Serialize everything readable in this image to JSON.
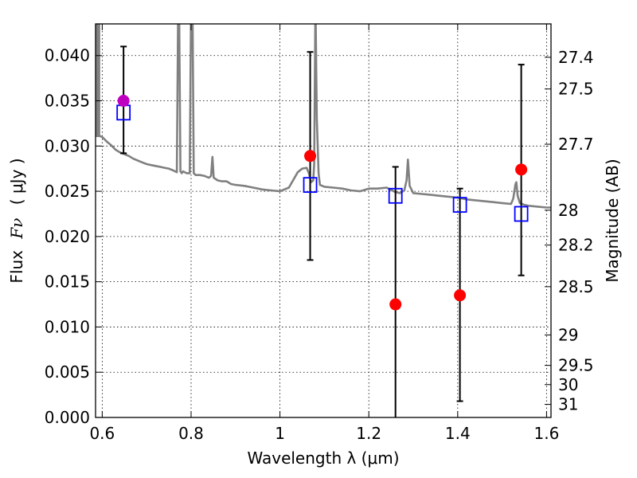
{
  "chart_data": {
    "type": "scatter",
    "xlabel": "Wavelength  λ (μm)",
    "ylabel_text": "Flux",
    "ylabel_symbol": "Fν",
    "ylabel_unit": "( μJy )",
    "y2label": "Magnitude (AB)",
    "xlim": [
      0.585,
      1.61
    ],
    "ylim": [
      0.0,
      0.0435
    ],
    "grid": true,
    "x_ticks": [
      0.6,
      0.8,
      1.0,
      1.2,
      1.4,
      1.6
    ],
    "x_tick_labels": [
      "0.6",
      "0.8",
      "1",
      "1.2",
      "1.4",
      "1.6"
    ],
    "y_ticks": [
      0.0,
      0.005,
      0.01,
      0.015,
      0.02,
      0.025,
      0.03,
      0.035,
      0.04
    ],
    "y_tick_labels": [
      "0.000",
      "0.005",
      "0.010",
      "0.015",
      "0.020",
      "0.025",
      "0.030",
      "0.035",
      "0.040"
    ],
    "y2_ticks": [
      {
        "label": "27.4",
        "mag": 27.4
      },
      {
        "label": "27.5",
        "mag": 27.5
      },
      {
        "label": "27.7",
        "mag": 27.7
      },
      {
        "label": "28",
        "mag": 28.0
      },
      {
        "label": "28.2",
        "mag": 28.2
      },
      {
        "label": "28.5",
        "mag": 28.5
      },
      {
        "label": "29",
        "mag": 29.0
      },
      {
        "label": "29.5",
        "mag": 29.5
      },
      {
        "label": "30",
        "mag": 30.0
      },
      {
        "label": "31",
        "mag": 31.0
      }
    ],
    "observed": {
      "color": "#ff0000",
      "points": [
        {
          "x": 1.068,
          "y": 0.0289,
          "err_lo": 0.0174,
          "err_hi": 0.0404
        },
        {
          "x": 1.26,
          "y": 0.0125,
          "err_lo": 0.0,
          "err_hi": 0.0277
        },
        {
          "x": 1.405,
          "y": 0.0135,
          "err_lo": 0.0018,
          "err_hi": 0.0253
        },
        {
          "x": 1.543,
          "y": 0.0274,
          "err_lo": 0.0157,
          "err_hi": 0.039
        }
      ]
    },
    "observed_highlight": {
      "color": "#bf00bf",
      "points": [
        {
          "x": 0.648,
          "y": 0.035,
          "err_lo": 0.0292,
          "err_hi": 0.041
        }
      ]
    },
    "model_band_flux": {
      "color": "#0000ff",
      "points": [
        {
          "x": 0.648,
          "y": 0.0337
        },
        {
          "x": 1.068,
          "y": 0.0257
        },
        {
          "x": 1.26,
          "y": 0.0245
        },
        {
          "x": 1.405,
          "y": 0.0235
        },
        {
          "x": 1.543,
          "y": 0.0225
        }
      ]
    },
    "model_spectrum": {
      "color": "#808080",
      "x": [
        0.585,
        0.588,
        0.592,
        0.595,
        0.6,
        0.61,
        0.62,
        0.63,
        0.64,
        0.65,
        0.66,
        0.67,
        0.68,
        0.69,
        0.7,
        0.71,
        0.72,
        0.73,
        0.74,
        0.75,
        0.76,
        0.768,
        0.771,
        0.773,
        0.776,
        0.779,
        0.782,
        0.79,
        0.797,
        0.8,
        0.803,
        0.806,
        0.81,
        0.82,
        0.83,
        0.84,
        0.845,
        0.848,
        0.851,
        0.86,
        0.87,
        0.88,
        0.89,
        0.9,
        0.92,
        0.94,
        0.96,
        0.98,
        1.0,
        1.02,
        1.04,
        1.05,
        1.06,
        1.065,
        1.07,
        1.075,
        1.077,
        1.08,
        1.083,
        1.087,
        1.09,
        1.1,
        1.12,
        1.14,
        1.16,
        1.18,
        1.2,
        1.22,
        1.24,
        1.26,
        1.27,
        1.28,
        1.285,
        1.288,
        1.292,
        1.3,
        1.32,
        1.34,
        1.36,
        1.38,
        1.4,
        1.42,
        1.44,
        1.46,
        1.48,
        1.5,
        1.52,
        1.525,
        1.53,
        1.532,
        1.535,
        1.54,
        1.55,
        1.56,
        1.58,
        1.6,
        1.61
      ],
      "y": [
        0.0315,
        0.0312,
        0.0311,
        0.0311,
        0.031,
        0.0305,
        0.0301,
        0.0296,
        0.0293,
        0.0291,
        0.0289,
        0.0286,
        0.0284,
        0.0282,
        0.028,
        0.0279,
        0.0278,
        0.0277,
        0.0276,
        0.0275,
        0.0273,
        0.0271,
        0.046,
        0.046,
        0.0272,
        0.027,
        0.0272,
        0.027,
        0.027,
        0.046,
        0.046,
        0.027,
        0.0268,
        0.0268,
        0.0267,
        0.0265,
        0.0267,
        0.0288,
        0.0265,
        0.0262,
        0.0261,
        0.0261,
        0.0258,
        0.0257,
        0.0256,
        0.0254,
        0.0252,
        0.0251,
        0.025,
        0.0254,
        0.0271,
        0.0275,
        0.0276,
        0.027,
        0.026,
        0.0262,
        0.028,
        0.046,
        0.033,
        0.027,
        0.0257,
        0.0255,
        0.0254,
        0.0253,
        0.0251,
        0.025,
        0.0253,
        0.0253,
        0.0254,
        0.0249,
        0.0248,
        0.0251,
        0.0262,
        0.0285,
        0.0256,
        0.0248,
        0.0247,
        0.0246,
        0.0245,
        0.0244,
        0.0243,
        0.0241,
        0.024,
        0.0239,
        0.0238,
        0.0237,
        0.0236,
        0.0242,
        0.0258,
        0.026,
        0.0245,
        0.0237,
        0.0235,
        0.0234,
        0.0233,
        0.0232,
        0.0232
      ],
      "uv_bursts_x": [
        0.586,
        0.587,
        0.588,
        0.589,
        0.59,
        0.591,
        0.592,
        0.593,
        0.594
      ]
    }
  }
}
